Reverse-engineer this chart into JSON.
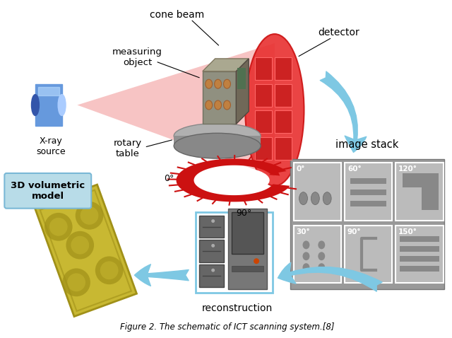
{
  "background_color": "#ffffff",
  "figsize": [
    6.4,
    4.78
  ],
  "dpi": 100,
  "caption": "Figure 2. The schematic of ICT scanning system.[8]",
  "labels": {
    "cone_beam": "cone beam",
    "detector": "detector",
    "measuring_object": "measuring\nobject",
    "xray_source": "X-ray\nsource",
    "rotary_table": "rotary\ntable",
    "angle_0": "0°",
    "angle_90": "90°",
    "image_stack": "image stack",
    "angles_top": [
      "0°",
      "60°",
      "120°"
    ],
    "angles_bottom": [
      "30°",
      "90°",
      "150°"
    ],
    "volumetric_model": "3D volumetric\nmodel",
    "reconstruction": "reconstruction"
  },
  "colors": {
    "cone_fill": "#f5b0b0",
    "cone_edge": "#d07070",
    "xray_cyl_main": "#6699dd",
    "xray_cyl_dark": "#3355aa",
    "xray_cyl_light": "#aaccff",
    "arrow_blue_fill": "#7ec8e3",
    "arrow_blue_edge": "#5aaccc",
    "rotary_red": "#cc1111",
    "image_stack_bg": "#999999",
    "image_sub_bg": "#cccccc",
    "image_sub_dark": "#888888",
    "model_yellow": "#c8b832",
    "model_dark": "#a09018",
    "box_3d_bg": "#b8dce8",
    "box_3d_edge": "#7ab8d6",
    "detector_red": "#cc3333",
    "detector_dark": "#aa1111",
    "computer_dark": "#555555",
    "computer_mid": "#777777",
    "computer_light": "#aaaaaa",
    "stripe_blue": "#88aacc"
  }
}
